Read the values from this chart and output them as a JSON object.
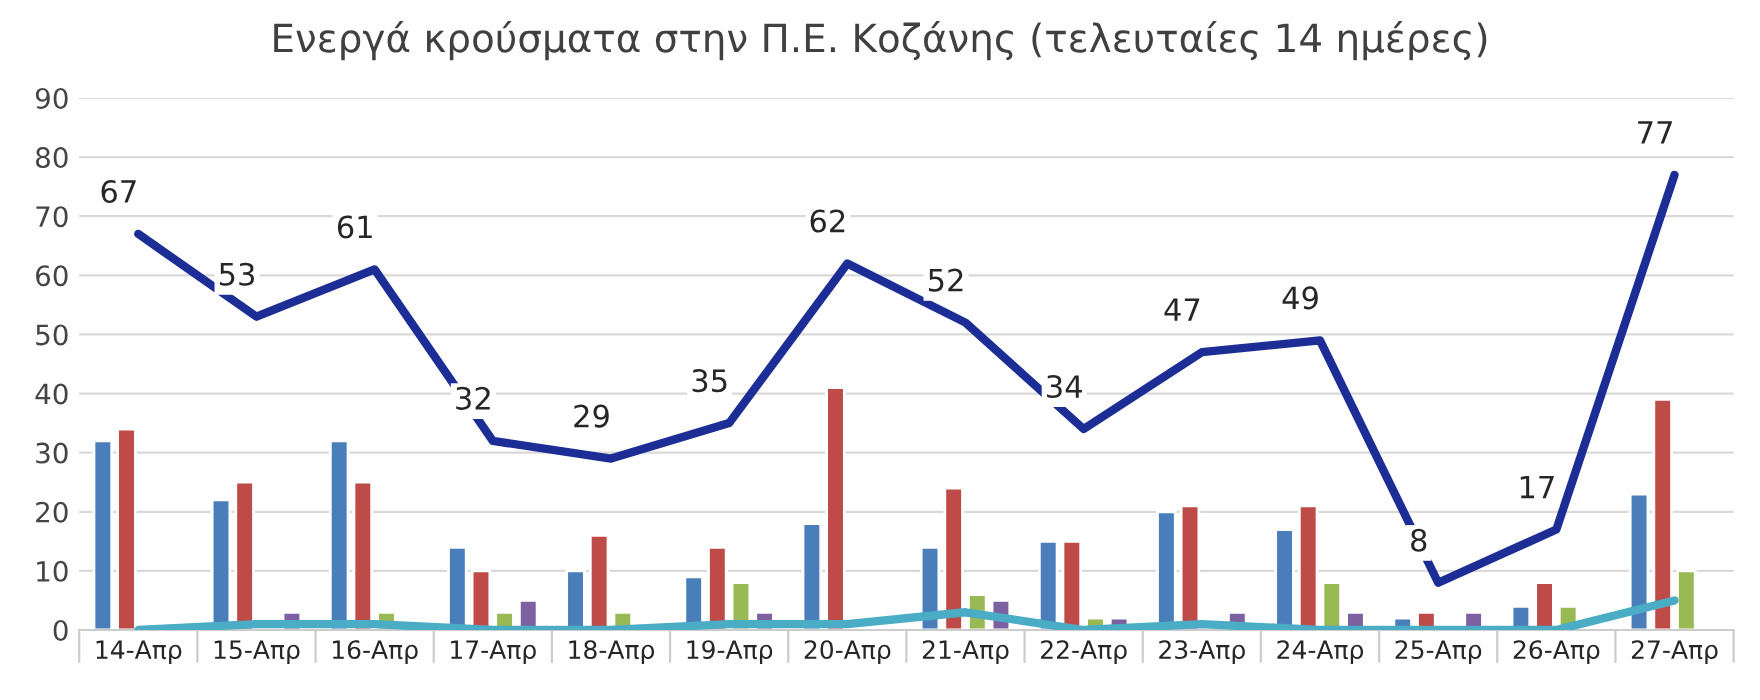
{
  "chart_data": {
    "type": "bar",
    "title": "Ενεργά κρούσματα στην Π.Ε. Κοζάνης (τελευταίες 14 ημέρες)",
    "categories": [
      "14-Απρ",
      "15-Απρ",
      "16-Απρ",
      "17-Απρ",
      "18-Απρ",
      "19-Απρ",
      "20-Απρ",
      "21-Απρ",
      "22-Απρ",
      "23-Απρ",
      "24-Απρ",
      "25-Απρ",
      "26-Απρ",
      "27-Απρ"
    ],
    "series": [
      {
        "color": "#4a7ebb",
        "values": [
          32,
          22,
          32,
          14,
          10,
          9,
          18,
          14,
          15,
          20,
          17,
          2,
          4,
          23
        ]
      },
      {
        "color": "#be4b48",
        "values": [
          34,
          25,
          25,
          10,
          16,
          14,
          41,
          24,
          15,
          21,
          21,
          3,
          8,
          39
        ]
      },
      {
        "color": "#98b954",
        "values": [
          null,
          null,
          3,
          3,
          3,
          8,
          null,
          6,
          2,
          null,
          8,
          null,
          4,
          10
        ]
      },
      {
        "color": "#7d60a0",
        "values": [
          null,
          3,
          null,
          5,
          null,
          3,
          null,
          5,
          2,
          3,
          3,
          3,
          null,
          null
        ]
      },
      {
        "type": "line",
        "color": "#1c2d96",
        "values": [
          67,
          53,
          61,
          32,
          29,
          35,
          62,
          52,
          34,
          47,
          49,
          8,
          17,
          77
        ],
        "value_labels": [
          "67",
          "53",
          "61",
          "32",
          "29",
          "35",
          "62",
          "52",
          "34",
          "47",
          "49",
          "8",
          "17",
          "77"
        ]
      },
      {
        "type": "line",
        "color": "#4bacc6",
        "values": [
          0,
          1,
          1,
          0,
          0,
          1,
          1,
          3,
          0,
          1,
          0,
          0,
          0,
          5
        ]
      }
    ],
    "ylim": [
      0,
      90
    ],
    "yticks": [
      0,
      10,
      20,
      30,
      40,
      50,
      60,
      70,
      80,
      90
    ],
    "grid": "y"
  }
}
